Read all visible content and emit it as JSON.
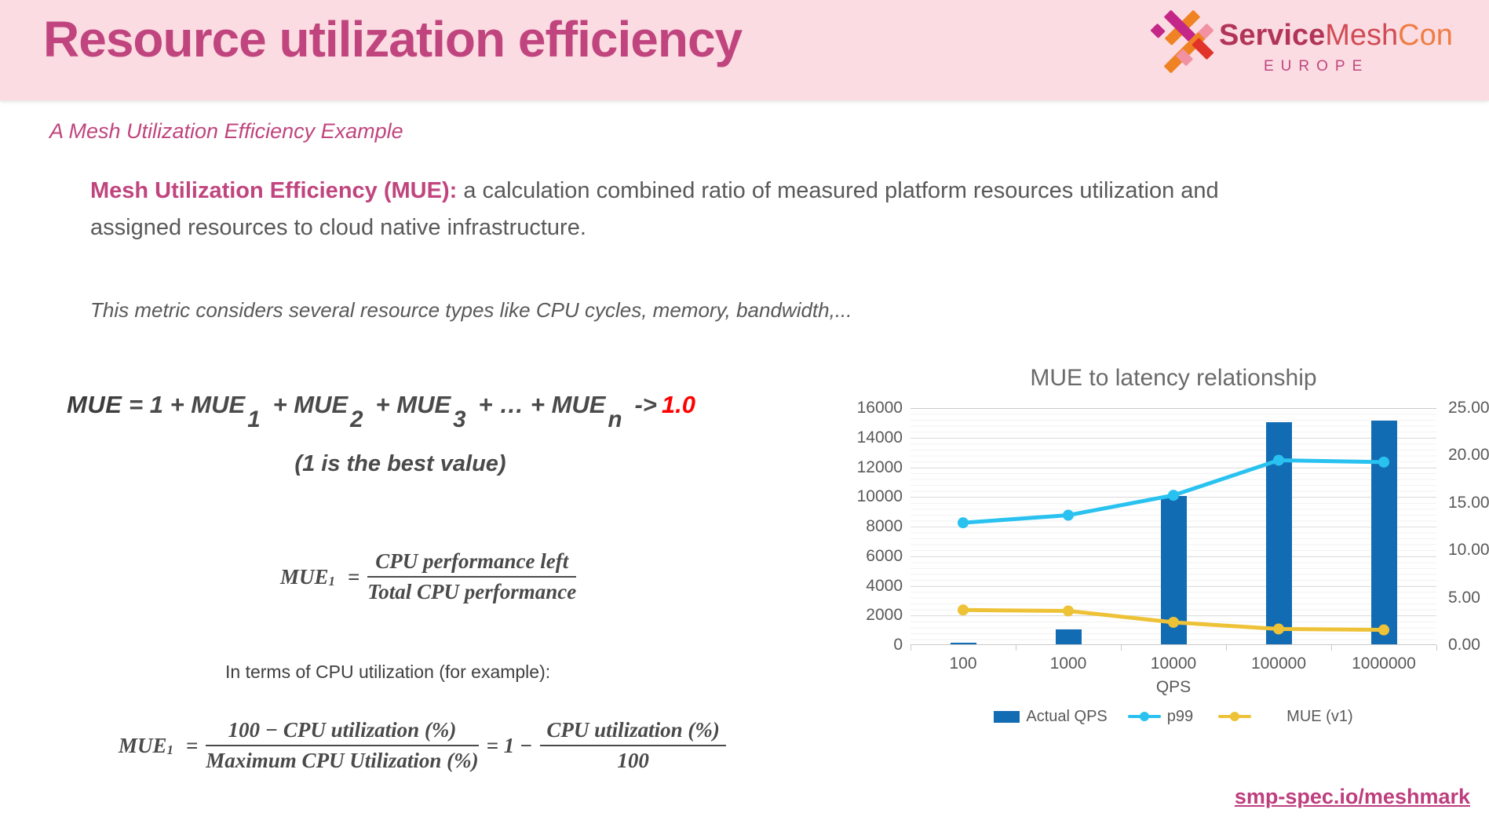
{
  "header": {
    "title": "Resource utilization efficiency",
    "logo": {
      "brand_service": "Service",
      "brand_mesh": "Mesh",
      "brand_con": "Con",
      "region": "EUROPE",
      "icon_colors": {
        "magenta": "#c42787",
        "orange": "#ef8222",
        "red": "#e1332a",
        "pink": "#f191a2"
      }
    },
    "band_color": "#fbdce2",
    "title_color": "#c0457e"
  },
  "subtitle": "A Mesh Utilization Efficiency Example",
  "intro": {
    "lead_bold": "Mesh Utilization Efficiency (MUE):",
    "lead_rest": " a calculation combined ratio of measured platform resources utilization and assigned resources to cloud native infrastructure."
  },
  "note": "This metric considers several resource types like CPU cycles, memory, bandwidth,...",
  "formula_sum": {
    "mue": "MUE",
    "eq": " = 1 + MUE",
    "sub1": "1",
    "plus2": "+ MUE",
    "sub2": "2",
    "plus3": "+ MUE",
    "sub3": "3",
    "plus_n": "+ … + MUE",
    "sub_n": "n",
    "arrow": "->",
    "target": "1.0",
    "caption": "(1 is the best value)"
  },
  "fraction1": {
    "lhs": "MUE",
    "lhs_sub": "1",
    "eq": "=",
    "numerator": "CPU performance left",
    "denominator": "Total CPU performance"
  },
  "cpu_line": "In terms of CPU utilization (for example):",
  "fraction2": {
    "lhs": "MUE",
    "lhs_sub": "1",
    "eq": "=",
    "num1": "100 − CPU utilization (%)",
    "den1": "Maximum CPU Utilization (%)",
    "mid": "= 1 −",
    "num2": "CPU utilization (%)",
    "den2": "100"
  },
  "link": "smp-spec.io/meshmark",
  "chart_data": {
    "type": "bar",
    "title": "MUE to latency relationship",
    "xlabel": "QPS",
    "categories": [
      "100",
      "1000",
      "10000",
      "100000",
      "1000000"
    ],
    "series": [
      {
        "name": "Actual QPS",
        "kind": "bar",
        "axis": "left",
        "color": "#126cb4",
        "values": [
          100,
          1000,
          10000,
          15000,
          15100
        ]
      },
      {
        "name": "p99",
        "kind": "line",
        "axis": "right",
        "color": "#29c2f0",
        "values": [
          12.9,
          13.7,
          15.8,
          19.5,
          19.3
        ]
      },
      {
        "name": "MUE (v1)",
        "kind": "line",
        "axis": "right",
        "color": "#eec237",
        "values": [
          3.7,
          3.6,
          2.4,
          1.7,
          1.6
        ]
      }
    ],
    "left_axis": {
      "min": 0,
      "max": 16000,
      "step": 2000,
      "ticks": [
        "16000",
        "14000",
        "12000",
        "10000",
        "8000",
        "6000",
        "4000",
        "2000",
        "0"
      ]
    },
    "right_axis": {
      "min": 0,
      "max": 25,
      "step": 5,
      "ticks": [
        "25.00",
        "20.00",
        "15.00",
        "10.00",
        "5.00",
        "0.00"
      ]
    },
    "grid": "on",
    "legend_position": "bottom"
  }
}
